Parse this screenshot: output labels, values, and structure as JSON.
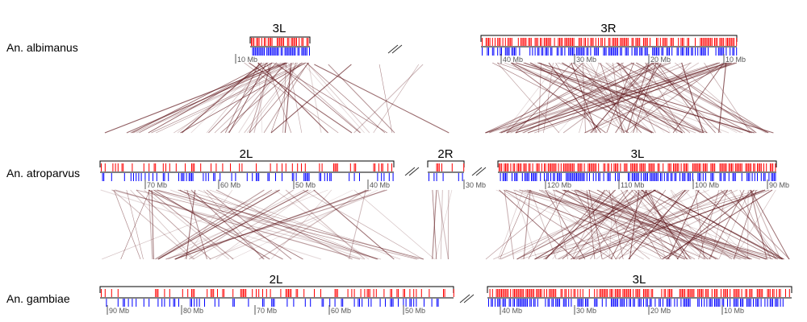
{
  "species": [
    {
      "name": "An. albimanus"
    },
    {
      "name": "An. atroparvus"
    },
    {
      "name": "An. gambiae"
    }
  ],
  "arms": [
    {
      "label": "3L"
    },
    {
      "label": "3R"
    },
    {
      "label": "2L"
    },
    {
      "label": "2R"
    },
    {
      "label": "3L"
    },
    {
      "label": "2L"
    },
    {
      "label": "3L"
    }
  ],
  "ticks": [
    {
      "text": "10 Mb"
    },
    {
      "text": "40 Mb"
    },
    {
      "text": "30 Mb"
    },
    {
      "text": "20 Mb"
    },
    {
      "text": "10 Mb"
    },
    {
      "text": "70 Mb"
    },
    {
      "text": "60 Mb"
    },
    {
      "text": "50 Mb"
    },
    {
      "text": "40 Mb"
    },
    {
      "text": "30 Mb"
    },
    {
      "text": "120 Mb"
    },
    {
      "text": "110 Mb"
    },
    {
      "text": "100 Mb"
    },
    {
      "text": "90 Mb"
    },
    {
      "text": "90 Mb"
    },
    {
      "text": "80 Mb"
    },
    {
      "text": "70 Mb"
    },
    {
      "text": "60 Mb"
    },
    {
      "text": "50 Mb"
    },
    {
      "text": "40 Mb"
    },
    {
      "text": "30 Mb"
    },
    {
      "text": "20 Mb"
    },
    {
      "text": "10 Mb"
    }
  ],
  "colors": {
    "forward_marks": "#ff0000",
    "reverse_marks": "#0000ff",
    "links": "#5a0f14",
    "axis": "#000000"
  }
}
